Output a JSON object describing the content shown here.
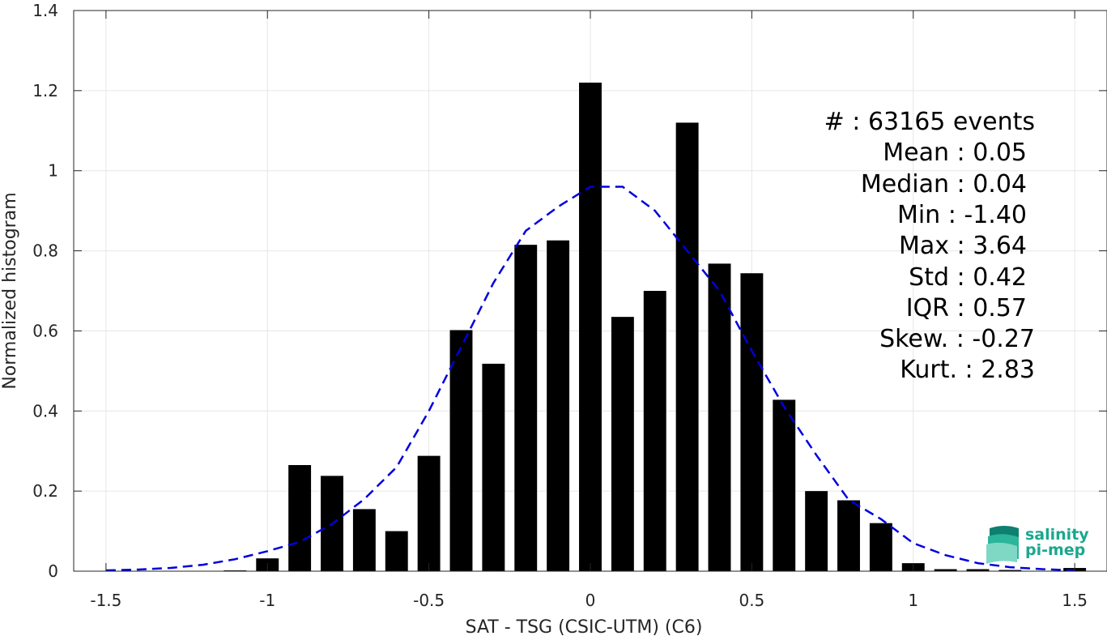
{
  "chart_data": {
    "type": "bar",
    "xlabel": "SAT - TSG (CSIC-UTM) (C6)",
    "ylabel": "Normalized histogram",
    "xlim": [
      -1.6,
      1.6
    ],
    "ylim": [
      0,
      1.4
    ],
    "x_ticks": [
      -1.5,
      -1,
      -0.5,
      0,
      0.5,
      1,
      1.5
    ],
    "x_tick_labels": [
      "-1.5",
      "-1",
      "-0.5",
      "0",
      "0.5",
      "1",
      "1.5"
    ],
    "y_ticks": [
      0,
      0.2,
      0.4,
      0.6,
      0.8,
      1,
      1.2,
      1.4
    ],
    "y_tick_labels": [
      "0",
      "0.2",
      "0.4",
      "0.6",
      "0.8",
      "1",
      "1.2",
      "1.4"
    ],
    "grid": true,
    "bar_color": "#000000",
    "bars": {
      "x": [
        -1.1,
        -1.0,
        -0.9,
        -0.8,
        -0.7,
        -0.6,
        -0.5,
        -0.4,
        -0.3,
        -0.2,
        -0.1,
        0.0,
        0.1,
        0.2,
        0.3,
        0.4,
        0.5,
        0.6,
        0.7,
        0.8,
        0.9,
        1.0,
        1.1,
        1.2,
        1.3,
        1.5
      ],
      "values": [
        0.002,
        0.032,
        0.265,
        0.238,
        0.155,
        0.1,
        0.288,
        0.602,
        0.518,
        0.815,
        0.826,
        1.22,
        0.635,
        0.7,
        1.12,
        0.768,
        0.744,
        0.428,
        0.2,
        0.177,
        0.12,
        0.02,
        0.005,
        0.005,
        0.003,
        0.008
      ]
    },
    "fit_curve": {
      "style": "dashed",
      "color": "#0000dd",
      "x": [
        -1.5,
        -1.4,
        -1.3,
        -1.2,
        -1.1,
        -1.0,
        -0.9,
        -0.8,
        -0.7,
        -0.6,
        -0.5,
        -0.4,
        -0.3,
        -0.2,
        -0.1,
        0.0,
        0.1,
        0.2,
        0.3,
        0.4,
        0.5,
        0.6,
        0.7,
        0.8,
        0.9,
        1.0,
        1.1,
        1.2,
        1.3,
        1.4,
        1.5
      ],
      "y": [
        0.002,
        0.004,
        0.008,
        0.016,
        0.03,
        0.05,
        0.073,
        0.118,
        0.18,
        0.26,
        0.4,
        0.56,
        0.72,
        0.85,
        0.91,
        0.96,
        0.96,
        0.9,
        0.8,
        0.7,
        0.55,
        0.41,
        0.29,
        0.178,
        0.13,
        0.07,
        0.04,
        0.02,
        0.01,
        0.005,
        0.002
      ]
    },
    "annotations": [
      "#  : 63165 events",
      "Mean : 0.05",
      "Median : 0.04",
      "Min : -1.40",
      "Max : 3.64",
      "Std : 0.42",
      "IQR : 0.57",
      "Skew. : -0.27",
      "Kurt. : 2.83"
    ]
  },
  "logo": {
    "line1": "salinity",
    "line2": "pi-mep",
    "color": "#1aa88c"
  }
}
